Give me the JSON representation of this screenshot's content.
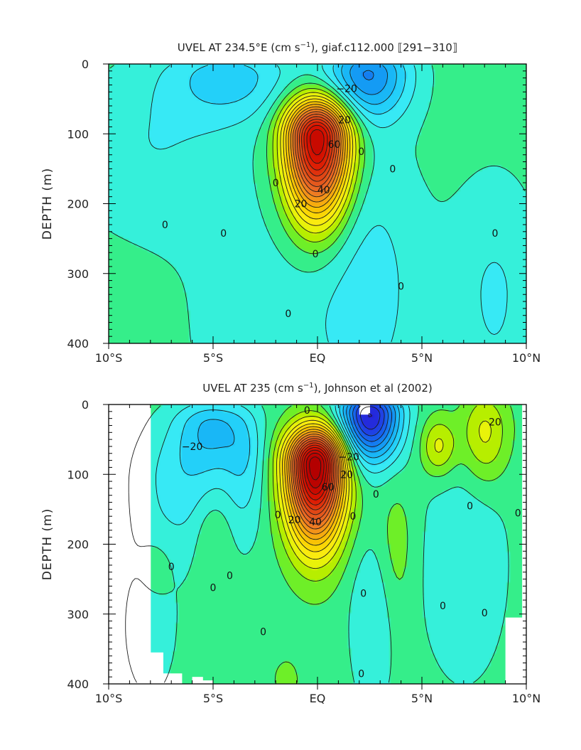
{
  "chart_data": [
    {
      "type": "heatmap",
      "subtype": "filled-contour",
      "title_prefix": "UVEL AT 234.5°E (cm s",
      "title_sup": "−1",
      "title_suffix": "), giaf.c112.000 ⟦291−310⟧",
      "ylabel": "DEPTH (m)",
      "xlabel": "",
      "x_ticks": [
        "10°S",
        "5°S",
        "EQ",
        "5°N",
        "10°N"
      ],
      "x_tick_values": [
        -10,
        -5,
        0,
        5,
        10
      ],
      "y_ticks": [
        "0",
        "100",
        "200",
        "300",
        "400"
      ],
      "y_tick_values": [
        0,
        100,
        200,
        300,
        400
      ],
      "xlim": [
        -10,
        10
      ],
      "ylim": [
        400,
        0
      ],
      "contour_interval": 5,
      "levels": [
        -25,
        -20,
        -15,
        -10,
        -5,
        0,
        5,
        10,
        15,
        20,
        25,
        30,
        35,
        40,
        45,
        50,
        55,
        60,
        65,
        70,
        75,
        80
      ],
      "blobs": [
        {
          "lon": 0.0,
          "depth": 105,
          "slon": 1.05,
          "sup": 38,
          "sdown": 78,
          "amp": 85
        },
        {
          "lon": 2.4,
          "depth": 15,
          "slon": 1.4,
          "sup": 30,
          "sdown": 45,
          "amp": -27
        },
        {
          "lon": -4.2,
          "depth": 18,
          "slon": 2.2,
          "sup": 30,
          "sdown": 45,
          "amp": -14
        },
        {
          "lon": -8.0,
          "depth": 120,
          "slon": 3.0,
          "sup": 80,
          "sdown": 90,
          "amp": -7
        },
        {
          "lon": 2.5,
          "depth": 320,
          "slon": 1.9,
          "sup": 150,
          "sdown": 150,
          "amp": -9
        },
        {
          "lon": 8.5,
          "depth": 330,
          "slon": 1.6,
          "sup": 120,
          "sdown": 150,
          "amp": -8
        },
        {
          "lon": -2.5,
          "depth": 380,
          "slon": 3.0,
          "sup": 150,
          "sdown": 150,
          "amp": -5
        },
        {
          "lon": 7.8,
          "depth": 60,
          "slon": 0.6,
          "sup": 15,
          "sdown": 15,
          "amp": 3
        }
      ],
      "data_mask": [],
      "contour_labels": [
        {
          "text": "−20",
          "lon": 1.4,
          "depth": 35
        },
        {
          "text": "20",
          "lon": 1.3,
          "depth": 80
        },
        {
          "text": "60",
          "lon": 0.8,
          "depth": 115
        },
        {
          "text": "40",
          "lon": 0.3,
          "depth": 180
        },
        {
          "text": "20",
          "lon": -0.8,
          "depth": 200
        },
        {
          "text": "0",
          "lon": -2.0,
          "depth": 170
        },
        {
          "text": "0",
          "lon": 2.1,
          "depth": 125
        },
        {
          "text": "0",
          "lon": 3.6,
          "depth": 150
        },
        {
          "text": "0",
          "lon": -7.3,
          "depth": 230
        },
        {
          "text": "0",
          "lon": -4.5,
          "depth": 242
        },
        {
          "text": "0",
          "lon": -0.1,
          "depth": 272
        },
        {
          "text": "0",
          "lon": 4.0,
          "depth": 318
        },
        {
          "text": "0",
          "lon": -1.4,
          "depth": 357
        },
        {
          "text": "0",
          "lon": 8.5,
          "depth": 242
        }
      ]
    },
    {
      "type": "heatmap",
      "subtype": "filled-contour",
      "title_prefix": "UVEL AT 235 (cm s",
      "title_sup": "−1",
      "title_suffix": "), Johnson et al (2002)",
      "ylabel": "DEPTH (m)",
      "xlabel": "",
      "x_ticks": [
        "10°S",
        "5°S",
        "EQ",
        "5°N",
        "10°N"
      ],
      "x_tick_values": [
        -10,
        -5,
        0,
        5,
        10
      ],
      "y_ticks": [
        "0",
        "100",
        "200",
        "300",
        "400"
      ],
      "y_tick_values": [
        0,
        100,
        200,
        300,
        400
      ],
      "xlim": [
        -10,
        10
      ],
      "ylim": [
        400,
        0
      ],
      "contour_interval": 5,
      "levels": [
        -45,
        -40,
        -35,
        -30,
        -25,
        -20,
        -15,
        -10,
        -5,
        0,
        5,
        10,
        15,
        20,
        25,
        30,
        35,
        40,
        45,
        50,
        55,
        60,
        65,
        70,
        75,
        80,
        85,
        90
      ],
      "blobs": [
        {
          "lon": -0.1,
          "depth": 85,
          "slon": 0.95,
          "sup": 35,
          "sdown": 75,
          "amp": 92
        },
        {
          "lon": 2.5,
          "depth": 15,
          "slon": 1.0,
          "sup": 25,
          "sdown": 45,
          "amp": -48
        },
        {
          "lon": -5.0,
          "depth": 30,
          "slon": 1.2,
          "sup": 25,
          "sdown": 45,
          "amp": -16
        },
        {
          "lon": -6.5,
          "depth": 110,
          "slon": 1.5,
          "sup": 60,
          "sdown": 80,
          "amp": -10
        },
        {
          "lon": -3.5,
          "depth": 80,
          "slon": 0.7,
          "sup": 50,
          "sdown": 80,
          "amp": -9
        },
        {
          "lon": 5.8,
          "depth": 60,
          "slon": 0.6,
          "sup": 30,
          "sdown": 30,
          "amp": 15
        },
        {
          "lon": 8.0,
          "depth": 40,
          "slon": 0.8,
          "sup": 40,
          "sdown": 50,
          "amp": 15
        },
        {
          "lon": 7.0,
          "depth": 230,
          "slon": 1.5,
          "sup": 120,
          "sdown": 120,
          "amp": -7
        },
        {
          "lon": 2.6,
          "depth": 300,
          "slon": 0.8,
          "sup": 80,
          "sdown": 100,
          "amp": -7
        },
        {
          "lon": -8.0,
          "depth": 320,
          "slon": 1.0,
          "sup": 80,
          "sdown": 80,
          "amp": -5
        },
        {
          "lon": -5.0,
          "depth": 190,
          "slon": 0.6,
          "sup": 40,
          "sdown": 50,
          "amp": 6
        },
        {
          "lon": -7.7,
          "depth": 230,
          "slon": 0.6,
          "sup": 30,
          "sdown": 40,
          "amp": 4
        },
        {
          "lon": 3.8,
          "depth": 200,
          "slon": 0.6,
          "sup": 60,
          "sdown": 80,
          "amp": 6
        },
        {
          "lon": -1.5,
          "depth": 395,
          "slon": 0.4,
          "sup": 20,
          "sdown": 20,
          "amp": 6
        }
      ],
      "data_mask": [
        {
          "lon": [
            -10.0,
            -8.0
          ],
          "depth": [
            0,
            400
          ]
        },
        {
          "lon": [
            -8.0,
            -7.4
          ],
          "depth": [
            355,
            400
          ]
        },
        {
          "lon": [
            -7.4,
            -6.5
          ],
          "depth": [
            385,
            400
          ]
        },
        {
          "lon": [
            -6.0,
            -5.5
          ],
          "depth": [
            390,
            400
          ]
        },
        {
          "lon": [
            -5.5,
            -5.0
          ],
          "depth": [
            395,
            400
          ]
        },
        {
          "lon": [
            2.0,
            2.5
          ],
          "depth": [
            0,
            14
          ]
        },
        {
          "lon": [
            9.0,
            9.8
          ],
          "depth": [
            305,
            400
          ]
        },
        {
          "lon": [
            9.8,
            10.0
          ],
          "depth": [
            0,
            400
          ]
        }
      ],
      "contour_labels": [
        {
          "text": "−20",
          "lon": -6.0,
          "depth": 60
        },
        {
          "text": "0",
          "lon": -0.5,
          "depth": 8
        },
        {
          "text": "−20",
          "lon": 1.5,
          "depth": 75
        },
        {
          "text": "20",
          "lon": 1.4,
          "depth": 100
        },
        {
          "text": "60",
          "lon": 0.5,
          "depth": 118
        },
        {
          "text": "40",
          "lon": -0.1,
          "depth": 168
        },
        {
          "text": "20",
          "lon": -1.1,
          "depth": 165
        },
        {
          "text": "0",
          "lon": -1.9,
          "depth": 158
        },
        {
          "text": "0",
          "lon": 1.7,
          "depth": 160
        },
        {
          "text": "0",
          "lon": 2.8,
          "depth": 128
        },
        {
          "text": "0",
          "lon": 7.3,
          "depth": 145
        },
        {
          "text": "0",
          "lon": 9.6,
          "depth": 155
        },
        {
          "text": "20",
          "lon": 8.5,
          "depth": 25
        },
        {
          "text": "0",
          "lon": -7.0,
          "depth": 232
        },
        {
          "text": "0",
          "lon": -5.0,
          "depth": 262
        },
        {
          "text": "0",
          "lon": -4.2,
          "depth": 245
        },
        {
          "text": "0",
          "lon": -2.6,
          "depth": 325
        },
        {
          "text": "0",
          "lon": 2.2,
          "depth": 270
        },
        {
          "text": "0",
          "lon": 2.1,
          "depth": 385
        },
        {
          "text": "0",
          "lon": 6.0,
          "depth": 288
        },
        {
          "text": "0",
          "lon": 8.0,
          "depth": 298
        }
      ]
    }
  ]
}
